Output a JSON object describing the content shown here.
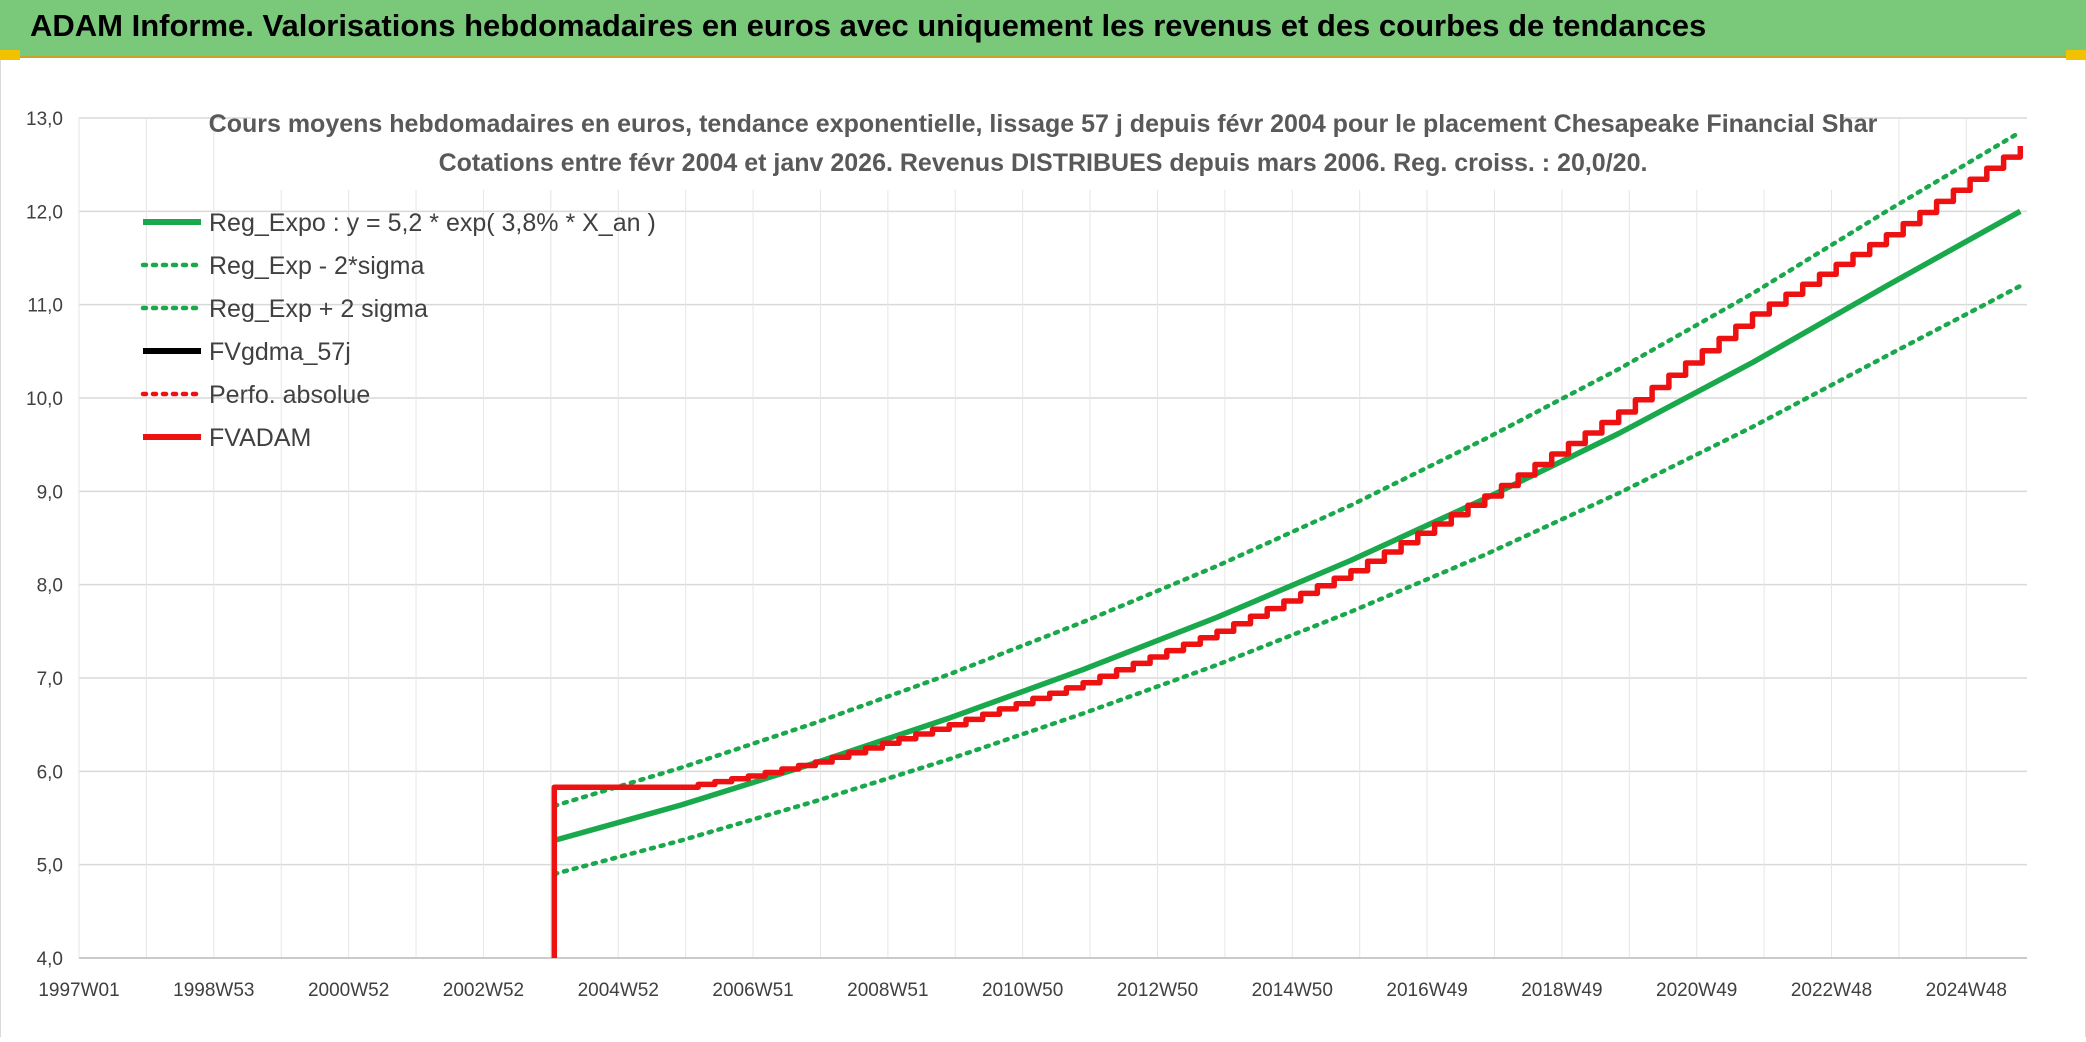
{
  "header": {
    "title": "ADAM Informe. Valorisations hebdomadaires en euros avec uniquement les revenus et des courbes de tendances"
  },
  "colors": {
    "header_bg": "#7ac97a",
    "green": "#1aa84c",
    "red": "#ee1111",
    "black": "#000000",
    "grid": "#d9d9d9"
  },
  "chart_data": {
    "type": "line",
    "title_line1": "Cours moyens hebdomadaires en euros, tendance exponentielle, lissage 57 j depuis févr 2004 pour le placement Chesapeake Financial Shar",
    "title_line2": "Cotations entre févr 2004 et janv 2026. Revenus DISTRIBUES depuis mars 2006. Reg. croiss. : 20,0/20.",
    "xlabel": "",
    "ylabel": "",
    "x_tick_labels": [
      "1997W01",
      "1998W53",
      "2000W52",
      "2002W52",
      "2004W52",
      "2006W51",
      "2008W51",
      "2010W50",
      "2012W50",
      "2014W50",
      "2016W49",
      "2018W49",
      "2020W49",
      "2022W48",
      "2024W48"
    ],
    "x_range_years": [
      1997.0,
      2026.1
    ],
    "ylim": [
      4.0,
      13.0
    ],
    "y_ticks": [
      "4,0",
      "5,0",
      "6,0",
      "7,0",
      "8,0",
      "9,0",
      "10,0",
      "11,0",
      "12,0",
      "13,0"
    ],
    "grid": true,
    "legend_position": "top-left",
    "series": [
      {
        "name": "Reg_Expo : y = 5,2 * exp( 3,8% *  X_an )",
        "style": "solid",
        "color": "#1aa84c",
        "x": [
          2004.1,
          2006.0,
          2008.0,
          2010.0,
          2012.0,
          2014.0,
          2016.0,
          2018.0,
          2020.0,
          2022.0,
          2024.0,
          2026.0
        ],
        "y": [
          5.26,
          5.64,
          6.09,
          6.57,
          7.09,
          7.65,
          8.26,
          8.92,
          9.62,
          10.38,
          11.2,
          12.0
        ]
      },
      {
        "name": "Reg_Exp - 2*sigma",
        "style": "dotted",
        "color": "#1aa84c",
        "x": [
          2004.1,
          2006.0,
          2008.0,
          2010.0,
          2012.0,
          2014.0,
          2016.0,
          2018.0,
          2020.0,
          2022.0,
          2024.0,
          2026.0
        ],
        "y": [
          4.9,
          5.26,
          5.68,
          6.13,
          6.62,
          7.14,
          7.71,
          8.32,
          8.98,
          9.69,
          10.45,
          11.2
        ]
      },
      {
        "name": "Reg_Exp + 2 sigma",
        "style": "dotted",
        "color": "#1aa84c",
        "x": [
          2004.1,
          2006.0,
          2008.0,
          2010.0,
          2012.0,
          2014.0,
          2016.0,
          2018.0,
          2020.0,
          2022.0,
          2024.0,
          2026.0
        ],
        "y": [
          5.63,
          6.04,
          6.52,
          7.04,
          7.6,
          8.2,
          8.85,
          9.56,
          10.31,
          11.12,
          12.0,
          12.85
        ]
      },
      {
        "name": "FVgdma_57j",
        "style": "solid",
        "color": "#000000",
        "x": [],
        "y": []
      },
      {
        "name": "Perfo. absolue",
        "style": "dotted",
        "color": "#ee1111",
        "x": [],
        "y": []
      },
      {
        "name": "FVADAM",
        "style": "solid",
        "color": "#ee1111",
        "x": [
          2004.1,
          2004.1,
          2006.0,
          2007.0,
          2008.0,
          2010.0,
          2012.0,
          2014.0,
          2016.0,
          2018.0,
          2020.0,
          2022.0,
          2024.0,
          2026.0
        ],
        "y": [
          4.0,
          5.83,
          5.83,
          5.95,
          6.1,
          6.5,
          6.95,
          7.5,
          8.15,
          8.95,
          9.85,
          10.9,
          11.75,
          12.7
        ]
      }
    ]
  }
}
